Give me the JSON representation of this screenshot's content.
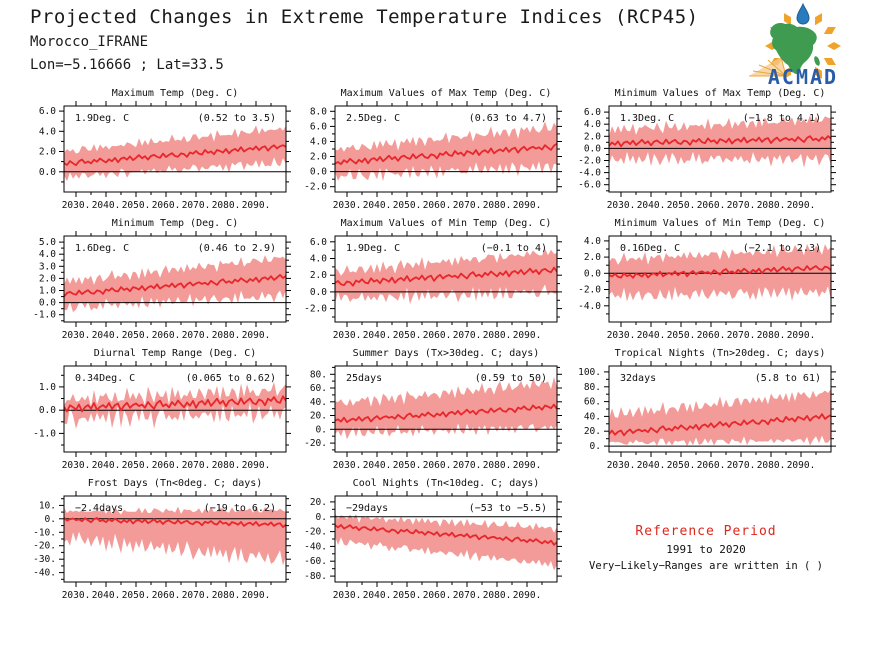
{
  "header": {
    "title": "Projected Changes in Extreme Temperature Indices (RCP45)",
    "location": "Morocco_IFRANE",
    "coords": "Lon=−5.16666 ; Lat=33.5"
  },
  "logo": {
    "label": "ACMAD"
  },
  "colors": {
    "band": "#f29b98",
    "line": "#e8262b",
    "axis": "#000000",
    "reference_red": "#e0251b",
    "logo_green": "#3e9b4f",
    "logo_blue": "#2a7abe",
    "logo_orange": "#f0a32a",
    "logo_text_blue": "#2a5ca8"
  },
  "reference": {
    "title": "Reference Period",
    "period": "1991 to 2020",
    "note": "Very−Likely−Ranges are written in ( )"
  },
  "chart_data": {
    "type": "line-with-uncertainty-band",
    "x_axis_years": true,
    "x_range": [
      2026,
      2100
    ],
    "n_points": 75,
    "x_ticks": [
      {
        "v": 2030,
        "label": "2030."
      },
      {
        "v": 2040,
        "label": "2040."
      },
      {
        "v": 2050,
        "label": "2050."
      },
      {
        "v": 2060,
        "label": "2060."
      },
      {
        "v": 2070,
        "label": "2070."
      },
      {
        "v": 2080,
        "label": "2080."
      },
      {
        "v": 2090,
        "label": "2090."
      }
    ],
    "noise": {
      "a": [
        0.2,
        -0.5,
        0.7,
        -0.1,
        -0.8,
        0.4,
        0.9,
        -0.3,
        0.1,
        -0.6,
        0.5,
        -0.2,
        0.8,
        0,
        -0.7,
        0.3,
        -0.4,
        0.6,
        -0.9,
        0.2,
        0.5,
        -0.3,
        0.7,
        -0.6,
        0.1,
        0.9,
        -0.2,
        0.4,
        -0.8,
        0.3,
        0.6,
        -0.1,
        -0.5,
        0.8,
        -0.4,
        0.2,
        0.7,
        -0.3,
        -0.6,
        0.4,
        0.1,
        -0.9,
        0.5,
        0,
        0.8,
        -0.2,
        -0.5,
        0.9,
        -0.1,
        0.3,
        -0.7,
        0.6,
        0.2,
        -0.4,
        0.7,
        -0.8,
        0.1,
        0.5,
        -0.3,
        0.9,
        -0.6,
        0,
        0.4,
        -0.2,
        0.8,
        -0.5,
        0.3,
        0.6,
        -0.9,
        0.1,
        0.7,
        -0.4,
        0.2,
        0.5,
        -0.1
      ],
      "b": [
        0.6,
        0.1,
        0.8,
        0.3,
        0.9,
        0.2,
        0.7,
        0.4,
        0.1,
        0.6,
        0.9,
        0.3,
        0.5,
        0.8,
        0.2,
        0.6,
        0.4,
        0.9,
        0.1,
        0.7,
        0.3,
        0.8,
        0.5,
        0.2,
        0.9,
        0.4,
        0.6,
        0.1,
        0.8,
        0.3,
        0.7,
        0.5,
        0.9,
        0.2,
        0.4,
        0.8,
        0.1,
        0.6,
        0.3,
        0.9,
        0.5,
        0.7,
        0.2,
        0.8,
        0.4,
        0.1,
        0.9,
        0.6,
        0.3,
        0.7,
        0.2,
        0.5,
        0.8,
        0.1,
        0.9,
        0.4,
        0.6,
        0.2,
        0.7,
        0.3,
        0.9,
        0.1,
        0.5,
        0.8,
        0.4,
        0.2,
        0.6,
        0.9,
        0.3,
        0.7,
        0.1,
        0.8,
        0.5,
        0.2,
        0.6
      ],
      "c": [
        0.3,
        0.7,
        0.2,
        0.9,
        0.4,
        0.8,
        0.1,
        0.5,
        0.9,
        0.2,
        0.6,
        0.4,
        0.8,
        0.3,
        0.7,
        0.1,
        0.9,
        0.5,
        0.2,
        0.8,
        0.4,
        0.6,
        0.1,
        0.9,
        0.3,
        0.7,
        0.5,
        0.2,
        0.8,
        0.6,
        0.1,
        0.4,
        0.9,
        0.7,
        0.3,
        0.5,
        0.8,
        0.2,
        0.9,
        0.1,
        0.6,
        0.4,
        0.7,
        0.3,
        0.9,
        0.5,
        0.1,
        0.8,
        0.2,
        0.6,
        0.9,
        0.4,
        0.3,
        0.7,
        0.1,
        0.5,
        0.8,
        0.2,
        0.9,
        0.6,
        0.4,
        0.1,
        0.7,
        0.3,
        0.8,
        0.5,
        0.9,
        0.2,
        0.6,
        0.1,
        0.4,
        0.8,
        0.3,
        0.7,
        0.5
      ]
    },
    "charts": [
      {
        "id": "maximum-temp",
        "title": "Maximum Temp (Deg. C)",
        "annotation_value": "1.9Deg. C",
        "annotation_range": "(0.52 to 3.5)",
        "median_change": 1.9,
        "very_likely_range": [
          0.52,
          3.5
        ],
        "units": "Deg. C",
        "y_range": [
          -2.0,
          6.5
        ],
        "y_ticks": [
          {
            "v": 0,
            "label": "0.0"
          },
          {
            "v": 2,
            "label": "2.0"
          },
          {
            "v": 4,
            "label": "4.0"
          },
          {
            "v": 6,
            "label": "6.0"
          }
        ],
        "series": {
          "m0": 0.8,
          "m1": 2.5,
          "m_amp": 0.3,
          "pa": 0,
          "up0": 1.2,
          "up1": 1.8,
          "up_amp": 0.9,
          "pb": 3,
          "dn0": 1.3,
          "dn1": 1.6,
          "dn_amp": 1.0,
          "pc": 11
        }
      },
      {
        "id": "max-of-max-temp",
        "title": "Maximum Values of Max Temp (Deg. C)",
        "annotation_value": "2.5Deg. C",
        "annotation_range": "(0.63 to 4.7)",
        "median_change": 2.5,
        "very_likely_range": [
          0.63,
          4.7
        ],
        "units": "Deg. C",
        "y_range": [
          -2.7,
          8.7
        ],
        "y_ticks": [
          {
            "v": -2,
            "label": "-2.0"
          },
          {
            "v": 0,
            "label": "0.0"
          },
          {
            "v": 2,
            "label": "2.0"
          },
          {
            "v": 4,
            "label": "4.0"
          },
          {
            "v": 6,
            "label": "6.0"
          },
          {
            "v": 8,
            "label": "8.0"
          }
        ],
        "series": {
          "m0": 1.2,
          "m1": 3.3,
          "m_amp": 0.45,
          "pa": 7,
          "up0": 1.7,
          "up1": 2.6,
          "up_amp": 1.5,
          "pb": 15,
          "dn0": 1.8,
          "dn1": 2.6,
          "dn_amp": 1.7,
          "pc": 22
        }
      },
      {
        "id": "min-of-max-temp",
        "title": "Minimum Values of Max Temp (Deg. C)",
        "annotation_value": "1.3Deg. C",
        "annotation_range": "(−1.8 to 4.1)",
        "median_change": 1.3,
        "very_likely_range": [
          -1.8,
          4.1
        ],
        "units": "Deg. C",
        "y_range": [
          -7.2,
          7.0
        ],
        "y_ticks": [
          {
            "v": -6,
            "label": "-6.0"
          },
          {
            "v": -4,
            "label": "-4.0"
          },
          {
            "v": -2,
            "label": "-2.0"
          },
          {
            "v": 0,
            "label": "0.0"
          },
          {
            "v": 2,
            "label": "2.0"
          },
          {
            "v": 4,
            "label": "4.0"
          },
          {
            "v": 6,
            "label": "6.0"
          }
        ],
        "series": {
          "m0": 0.8,
          "m1": 1.6,
          "m_amp": 0.55,
          "pa": 14,
          "up0": 2.2,
          "up1": 3.2,
          "up_amp": 1.7,
          "pb": 27,
          "dn0": 2.6,
          "dn1": 3.4,
          "dn_amp": 2.4,
          "pc": 33
        }
      },
      {
        "id": "minimum-temp",
        "title": "Minimum Temp (Deg. C)",
        "annotation_value": "1.6Deg. C",
        "annotation_range": "(0.46 to 2.9)",
        "median_change": 1.6,
        "very_likely_range": [
          0.46,
          2.9
        ],
        "units": "Deg. C",
        "y_range": [
          -1.6,
          5.5
        ],
        "y_ticks": [
          {
            "v": -1,
            "label": "-1.0"
          },
          {
            "v": 0,
            "label": "0.0"
          },
          {
            "v": 1,
            "label": "1.0"
          },
          {
            "v": 2,
            "label": "2.0"
          },
          {
            "v": 3,
            "label": "3.0"
          },
          {
            "v": 4,
            "label": "4.0"
          },
          {
            "v": 5,
            "label": "5.0"
          }
        ],
        "series": {
          "m0": 0.7,
          "m1": 2.1,
          "m_amp": 0.25,
          "pa": 28,
          "up0": 1.0,
          "up1": 1.6,
          "up_amp": 0.9,
          "pb": 51,
          "dn0": 1.1,
          "dn1": 1.5,
          "dn_amp": 1.0,
          "pc": 55
        }
      },
      {
        "id": "max-of-min-temp",
        "title": "Maximum Values of Min Temp (Deg. C)",
        "annotation_value": "1.9Deg. C",
        "annotation_range": "(−0.1 to 4)",
        "median_change": 1.9,
        "very_likely_range": [
          -0.1,
          4
        ],
        "units": "Deg. C",
        "y_range": [
          -3.6,
          6.7
        ],
        "y_ticks": [
          {
            "v": -2,
            "label": "-2.0"
          },
          {
            "v": 0,
            "label": "0.0"
          },
          {
            "v": 2,
            "label": "2.0"
          },
          {
            "v": 4,
            "label": "4.0"
          },
          {
            "v": 6,
            "label": "6.0"
          }
        ],
        "series": {
          "m0": 1.0,
          "m1": 2.6,
          "m_amp": 0.42,
          "pa": 35,
          "up0": 1.4,
          "up1": 2.2,
          "up_amp": 1.3,
          "pb": 63,
          "dn0": 1.8,
          "dn1": 2.6,
          "dn_amp": 1.7,
          "pc": 66
        }
      },
      {
        "id": "min-of-min-temp",
        "title": "Minimum Values of Min Temp (Deg. C)",
        "annotation_value": "0.16Deg. C",
        "annotation_range": "(−2.1 to 2.3)",
        "median_change": 0.16,
        "very_likely_range": [
          -2.1,
          2.3
        ],
        "units": "Deg. C",
        "y_range": [
          -6.0,
          4.6
        ],
        "y_ticks": [
          {
            "v": -4,
            "label": "-4.0"
          },
          {
            "v": -2,
            "label": "-2.0"
          },
          {
            "v": 0,
            "label": "0.0"
          },
          {
            "v": 2,
            "label": "2.0"
          },
          {
            "v": 4,
            "label": "4.0"
          }
        ],
        "series": {
          "m0": -0.4,
          "m1": 0.7,
          "m_amp": 0.38,
          "pa": 42,
          "up0": 2.0,
          "up1": 2.4,
          "up_amp": 1.3,
          "pb": 5,
          "dn0": 2.4,
          "dn1": 3.0,
          "dn_amp": 1.7,
          "pc": 17
        }
      },
      {
        "id": "diurnal-temp-range",
        "title": "Diurnal Temp Range (Deg. C)",
        "annotation_value": "0.34Deg. C",
        "annotation_range": "(0.065 to 0.62)",
        "median_change": 0.34,
        "very_likely_range": [
          0.065,
          0.62
        ],
        "units": "Deg. C",
        "y_range": [
          -1.8,
          1.9
        ],
        "y_ticks": [
          {
            "v": -1,
            "label": "-1.0"
          },
          {
            "v": 0,
            "label": "0.0"
          },
          {
            "v": 1,
            "label": "1.0"
          }
        ],
        "series": {
          "m0": 0.08,
          "m1": 0.42,
          "m_amp": 0.2,
          "pa": 49,
          "up0": 0.35,
          "up1": 0.45,
          "up_amp": 0.7,
          "pb": 18,
          "dn0": 0.45,
          "dn1": 0.55,
          "dn_amp": 0.9,
          "pc": 28
        }
      },
      {
        "id": "summer-days",
        "title": "Summer Days (Tx>30deg. C; days)",
        "annotation_value": "25days",
        "annotation_range": "(0.59 to 50)",
        "median_change": 25,
        "very_likely_range": [
          0.59,
          50
        ],
        "units": "days",
        "y_range": [
          -33,
          92
        ],
        "y_ticks": [
          {
            "v": -20,
            "label": "-20."
          },
          {
            "v": 0,
            "label": "0."
          },
          {
            "v": 20,
            "label": "20."
          },
          {
            "v": 40,
            "label": "40."
          },
          {
            "v": 60,
            "label": "60."
          },
          {
            "v": 80,
            "label": "80."
          }
        ],
        "series": {
          "m0": 12,
          "m1": 33,
          "m_amp": 4.5,
          "pa": 56,
          "up0": 25,
          "up1": 35,
          "up_amp": 18,
          "pb": 30,
          "dn0": 18,
          "dn1": 30,
          "dn_amp": 16,
          "pc": 40
        }
      },
      {
        "id": "tropical-nights",
        "title": "Tropical Nights (Tn>20deg. C; days)",
        "annotation_value": "32days",
        "annotation_range": "(5.8 to 61)",
        "median_change": 32,
        "very_likely_range": [
          5.8,
          61
        ],
        "units": "days",
        "y_range": [
          -8,
          108
        ],
        "y_ticks": [
          {
            "v": 0,
            "label": "0."
          },
          {
            "v": 20,
            "label": "20."
          },
          {
            "v": 40,
            "label": "40."
          },
          {
            "v": 60,
            "label": "60."
          },
          {
            "v": 80,
            "label": "80."
          },
          {
            "v": 100,
            "label": "100."
          }
        ],
        "series": {
          "m0": 17,
          "m1": 40,
          "m_amp": 4.5,
          "pa": 63,
          "up0": 25,
          "up1": 32,
          "up_amp": 16,
          "pb": 42,
          "dn0": 13,
          "dn1": 32,
          "dn_amp": 8,
          "pc": 52,
          "clamp_low": 0
        }
      },
      {
        "id": "frost-days",
        "title": "Frost Days (Tn<0deg. C; days)",
        "annotation_value": "−2.4days",
        "annotation_range": "(−19 to 6.2)",
        "median_change": -2.4,
        "very_likely_range": [
          -19,
          6.2
        ],
        "units": "days",
        "y_range": [
          -47,
          17
        ],
        "y_ticks": [
          {
            "v": -40,
            "label": "-40."
          },
          {
            "v": -30,
            "label": "-30."
          },
          {
            "v": -20,
            "label": "-20."
          },
          {
            "v": -10,
            "label": "-10."
          },
          {
            "v": 0,
            "label": "0."
          },
          {
            "v": 10,
            "label": "10."
          }
        ],
        "series": {
          "m0": -0.5,
          "m1": -4.5,
          "m_amp": 1.9,
          "pa": 70,
          "up0": 6,
          "up1": 11,
          "up_amp": 4,
          "pb": 54,
          "dn0": 14,
          "dn1": 26,
          "dn_amp": 14,
          "pc": 64,
          "clamp_high": 12
        }
      },
      {
        "id": "cool-nights",
        "title": "Cool Nights (Tn<10deg. C; days)",
        "annotation_value": "−29days",
        "annotation_range": "(−53 to −5.5)",
        "median_change": -29,
        "very_likely_range": [
          -53,
          -5.5
        ],
        "units": "days",
        "y_range": [
          -88,
          28
        ],
        "y_ticks": [
          {
            "v": -80,
            "label": "-80."
          },
          {
            "v": -60,
            "label": "-60."
          },
          {
            "v": -40,
            "label": "-40."
          },
          {
            "v": -20,
            "label": "-20."
          },
          {
            "v": 0,
            "label": "0."
          },
          {
            "v": 20,
            "label": "20."
          }
        ],
        "series": {
          "m0": -13,
          "m1": -35,
          "m_amp": 3.5,
          "pa": 20,
          "up0": 13,
          "up1": 20,
          "up_amp": 9,
          "pb": 10,
          "dn0": 20,
          "dn1": 30,
          "dn_amp": 12,
          "pc": 46
        }
      }
    ]
  }
}
